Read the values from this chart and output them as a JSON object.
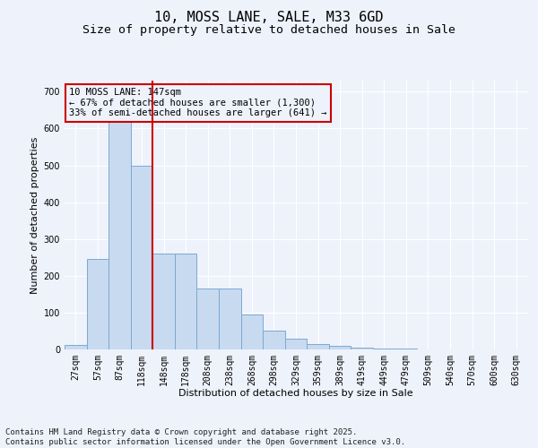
{
  "title1": "10, MOSS LANE, SALE, M33 6GD",
  "title2": "Size of property relative to detached houses in Sale",
  "xlabel": "Distribution of detached houses by size in Sale",
  "ylabel": "Number of detached properties",
  "categories": [
    "27sqm",
    "57sqm",
    "87sqm",
    "118sqm",
    "148sqm",
    "178sqm",
    "208sqm",
    "238sqm",
    "268sqm",
    "298sqm",
    "329sqm",
    "359sqm",
    "389sqm",
    "419sqm",
    "449sqm",
    "479sqm",
    "509sqm",
    "540sqm",
    "570sqm",
    "600sqm",
    "630sqm"
  ],
  "values": [
    12,
    245,
    620,
    500,
    260,
    260,
    165,
    165,
    95,
    50,
    28,
    14,
    10,
    5,
    3,
    2,
    1,
    0,
    1,
    0,
    0
  ],
  "bar_color": "#c8daf0",
  "bar_edge_color": "#7aaad0",
  "vline_color": "#cc0000",
  "vline_pos": 3.5,
  "annotation_text": "10 MOSS LANE: 147sqm\n← 67% of detached houses are smaller (1,300)\n33% of semi-detached houses are larger (641) →",
  "annotation_box_color": "#cc0000",
  "ylim": [
    0,
    730
  ],
  "yticks": [
    0,
    100,
    200,
    300,
    400,
    500,
    600,
    700
  ],
  "footer1": "Contains HM Land Registry data © Crown copyright and database right 2025.",
  "footer2": "Contains public sector information licensed under the Open Government Licence v3.0.",
  "bg_color": "#eef2fb",
  "grid_color": "#ffffff",
  "title_fontsize": 11,
  "subtitle_fontsize": 9.5,
  "axis_label_fontsize": 8,
  "tick_fontsize": 7,
  "annotation_fontsize": 7.5,
  "footer_fontsize": 6.5
}
